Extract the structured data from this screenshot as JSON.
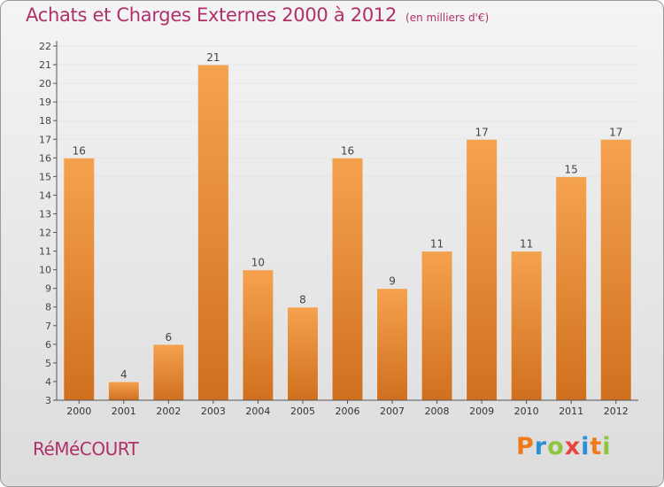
{
  "header": {
    "title": "Achats et Charges Externes 2000 à 2012",
    "subtitle": "(en milliers d'€)"
  },
  "footer": {
    "town": "RéMéCOURT",
    "brand": {
      "text": "Proxiti",
      "letter_colors": [
        "#f07a1a",
        "#2b8fd6",
        "#8cc63f",
        "#e8453c",
        "#2b8fd6",
        "#f07a1a",
        "#8cc63f"
      ]
    }
  },
  "colors": {
    "title": "#b0306a",
    "bar_light": "#f5a24f",
    "bar_dark": "#d0701e",
    "grid": "#e6e6e6",
    "axis": "#555555"
  },
  "chart_data": {
    "type": "bar",
    "title": "Achats et Charges Externes 2000 à 2012",
    "subtitle": "(en milliers d'€)",
    "categories": [
      "2000",
      "2001",
      "2002",
      "2003",
      "2004",
      "2005",
      "2006",
      "2007",
      "2008",
      "2009",
      "2010",
      "2011",
      "2012"
    ],
    "values": [
      16,
      4,
      6,
      21,
      10,
      8,
      16,
      9,
      11,
      17,
      11,
      15,
      17
    ],
    "ylim": [
      3,
      22
    ],
    "yticks": [
      3,
      4,
      5,
      6,
      7,
      8,
      9,
      10,
      11,
      12,
      13,
      14,
      15,
      16,
      17,
      18,
      19,
      20,
      21,
      22
    ],
    "grid": true,
    "data_labels": true,
    "legend": "none"
  }
}
